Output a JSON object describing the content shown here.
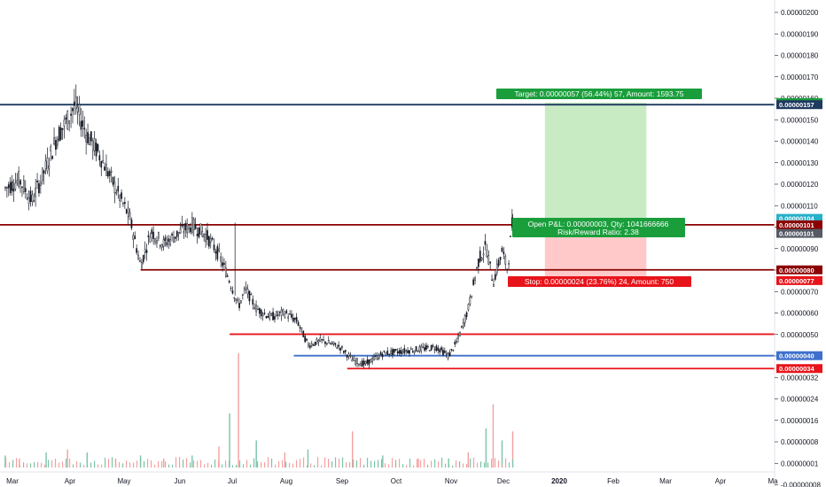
{
  "chart_data": {
    "type": "candlestick",
    "symbol_scale": "price",
    "ylim": [
      -1.15e-07,
      2.05e-07
    ],
    "y_ticks": [
      "0.00000200",
      "0.00000190",
      "0.00000180",
      "0.00000170",
      "0.00000160",
      "0.00000150",
      "0.00000140",
      "0.00000130",
      "0.00000120",
      "0.00000110",
      "0.00000100",
      "0.00000090",
      "0.00000080",
      "0.00000070",
      "0.00000060",
      "0.00000050",
      "0.00000040",
      "0.00000032",
      "0.00000024",
      "0.00000016",
      "0.00000008",
      "0.00000001",
      "-0.00000008"
    ],
    "x_ticks": [
      "Mar",
      "Apr",
      "May",
      "Jun",
      "Jul",
      "Aug",
      "Sep",
      "Oct",
      "Nov",
      "Dec",
      "2020",
      "Feb",
      "Mar",
      "Apr",
      "Ma"
    ],
    "price_series": [
      [
        "2019-02-25",
        118
      ],
      [
        "2019-03-05",
        122
      ],
      [
        "2019-03-12",
        112
      ],
      [
        "2019-03-20",
        128
      ],
      [
        "2019-03-26",
        142
      ],
      [
        "2019-04-01",
        150
      ],
      [
        "2019-04-05",
        157
      ],
      [
        "2019-04-12",
        143
      ],
      [
        "2019-04-20",
        132
      ],
      [
        "2019-04-28",
        118
      ],
      [
        "2019-05-06",
        104
      ],
      [
        "2019-05-12",
        82
      ],
      [
        "2019-05-18",
        98
      ],
      [
        "2019-05-25",
        92
      ],
      [
        "2019-06-02",
        97
      ],
      [
        "2019-06-10",
        101
      ],
      [
        "2019-06-18",
        96
      ],
      [
        "2019-06-25",
        87
      ],
      [
        "2019-07-01",
        75
      ],
      [
        "2019-07-06",
        63
      ],
      [
        "2019-07-10",
        71
      ],
      [
        "2019-07-16",
        62
      ],
      [
        "2019-07-24",
        58
      ],
      [
        "2019-08-01",
        60
      ],
      [
        "2019-08-08",
        56
      ],
      [
        "2019-08-14",
        45
      ],
      [
        "2019-08-22",
        47
      ],
      [
        "2019-09-01",
        44
      ],
      [
        "2019-09-08",
        38
      ],
      [
        "2019-09-15",
        36
      ],
      [
        "2019-09-25",
        41
      ],
      [
        "2019-10-05",
        42
      ],
      [
        "2019-10-15",
        43
      ],
      [
        "2019-10-25",
        44
      ],
      [
        "2019-11-01",
        40
      ],
      [
        "2019-11-06",
        47
      ],
      [
        "2019-11-12",
        62
      ],
      [
        "2019-11-18",
        85
      ],
      [
        "2019-11-22",
        91
      ],
      [
        "2019-11-26",
        74
      ],
      [
        "2019-12-01",
        89
      ],
      [
        "2019-12-04",
        80
      ],
      [
        "2019-12-07",
        104
      ]
    ],
    "volume": [
      [
        "2019-02-25",
        4
      ],
      [
        "2019-03-05",
        3
      ],
      [
        "2019-03-20",
        5
      ],
      [
        "2019-04-01",
        6
      ],
      [
        "2019-04-12",
        5
      ],
      [
        "2019-04-28",
        3
      ],
      [
        "2019-05-12",
        4
      ],
      [
        "2019-05-25",
        3
      ],
      [
        "2019-06-10",
        4
      ],
      [
        "2019-06-25",
        7
      ],
      [
        "2019-07-01",
        18
      ],
      [
        "2019-07-06",
        38
      ],
      [
        "2019-07-16",
        9
      ],
      [
        "2019-08-01",
        5
      ],
      [
        "2019-08-14",
        6
      ],
      [
        "2019-09-08",
        12
      ],
      [
        "2019-09-25",
        4
      ],
      [
        "2019-10-15",
        3
      ],
      [
        "2019-11-01",
        3
      ],
      [
        "2019-11-12",
        5
      ],
      [
        "2019-11-22",
        13
      ],
      [
        "2019-11-26",
        21
      ],
      [
        "2019-12-01",
        9
      ],
      [
        "2019-12-07",
        12
      ]
    ],
    "horizontal_lines": [
      {
        "price": 157,
        "color": "#1f3a5f",
        "start": "2019-02-20"
      },
      {
        "price": 101,
        "color": "#8b0000",
        "start": "2019-02-20"
      },
      {
        "price": 80,
        "color": "#8b0000",
        "start": "2019-05-12"
      },
      {
        "price": 50,
        "color": "#e8141b",
        "start": "2019-07-01"
      },
      {
        "price": 40,
        "color": "#3d6fcc",
        "start": "2019-08-06"
      },
      {
        "price": 34,
        "color": "#e8141b",
        "start": "2019-09-05"
      }
    ],
    "position": {
      "entry": 101,
      "target": 158,
      "stop": 77,
      "start": "2019-12-25",
      "end": "2020-02-20"
    },
    "annotations": {
      "target": "Target: 0.00000057 (56.44%) 57, Amount: 1593.75",
      "open_pnl": "Open P&L: 0.00000003, Qty: 1041666666",
      "rr": "Risk/Reward Ratio: 2.38",
      "stop": "Stop: 0.00000024 (23.76%) 24, Amount: 750"
    },
    "axis_badges": [
      {
        "text": "0.00000158",
        "price": 158,
        "color": "#1a9e3c"
      },
      {
        "text": "0.00000157",
        "price": 157,
        "color": "#1f3a5f"
      },
      {
        "text": "0.00000104",
        "price": 104,
        "color": "#26b0c9"
      },
      {
        "text": "0.00000101",
        "price": 101,
        "color": "#8b0000"
      },
      {
        "text": "0.00000101",
        "price": 97,
        "color": "#555a66"
      },
      {
        "text": "0.00000080",
        "price": 80,
        "color": "#8b0000"
      },
      {
        "text": "0.00000077",
        "price": 75,
        "color": "#e8141b"
      },
      {
        "text": "0.00000040",
        "price": 40,
        "color": "#3d6fcc"
      },
      {
        "text": "0.00000034",
        "price": 34,
        "color": "#e8141b"
      }
    ],
    "colors": {
      "candle": "#131722",
      "target_zone": "#c8ebc4",
      "stop_zone": "#ffc9c9",
      "target_label": "#1a9e3c",
      "stop_label": "#e8141b",
      "volume_up": "#7bc4a8",
      "volume_down": "#f4a0a0"
    }
  }
}
